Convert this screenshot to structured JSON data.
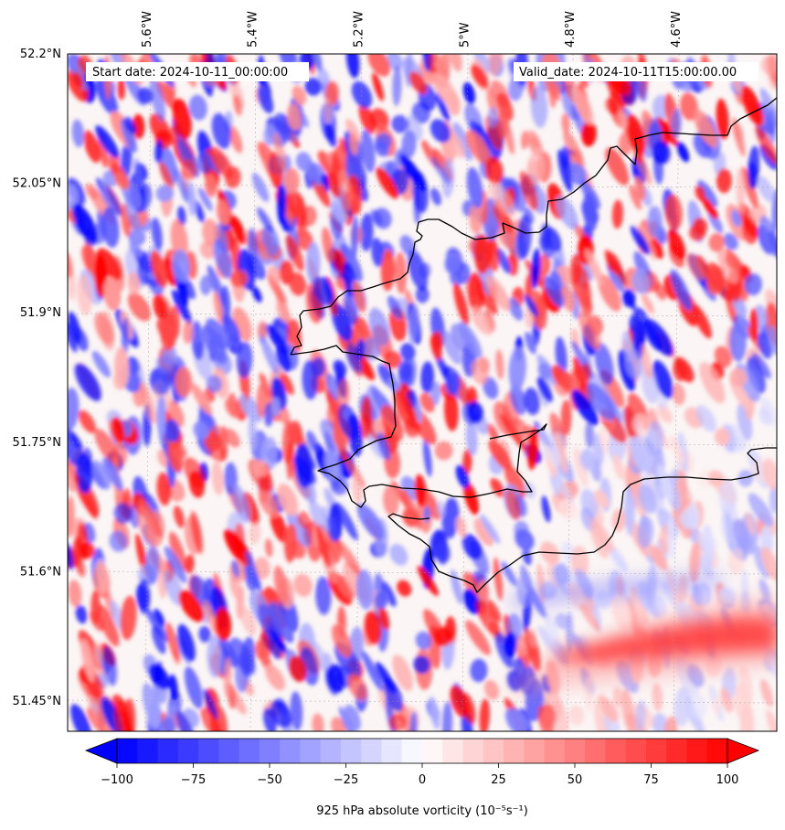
{
  "header": {
    "start_text": "Start date: 2024-10-11_00:00:00",
    "valid_text": "Valid_date: 2024-10-11T15:00:00.00"
  },
  "chart_data": {
    "type": "heatmap",
    "title": "",
    "field": "925 hPa absolute vorticity",
    "x_ticks": [
      {
        "label": "5.6°W",
        "lon": -5.6
      },
      {
        "label": "5.4°W",
        "lon": -5.4
      },
      {
        "label": "5.2°W",
        "lon": -5.2
      },
      {
        "label": "5°W",
        "lon": -5.0
      },
      {
        "label": "4.8°W",
        "lon": -4.8
      },
      {
        "label": "4.6°W",
        "lon": -4.6
      }
    ],
    "y_ticks": [
      {
        "label": "52.2°N",
        "lat": 52.2
      },
      {
        "label": "52.05°N",
        "lat": 52.05
      },
      {
        "label": "51.9°N",
        "lat": 51.9
      },
      {
        "label": "51.75°N",
        "lat": 51.75
      },
      {
        "label": "51.6°N",
        "lat": 51.6
      },
      {
        "label": "51.45°N",
        "lat": 51.45
      }
    ],
    "xlim": [
      -5.75,
      -4.41
    ],
    "ylim": [
      51.415,
      52.2
    ],
    "grid": true,
    "colorbar": {
      "label": "925 hPa absolute vorticity (10⁻⁵s⁻¹)",
      "range": [
        -100,
        100
      ],
      "levels": 30,
      "extend": "both",
      "cmap": "bwr",
      "ticks": [
        {
          "label": "−100",
          "value": -100
        },
        {
          "label": "−75",
          "value": -75
        },
        {
          "label": "−50",
          "value": -50
        },
        {
          "label": "−25",
          "value": -25
        },
        {
          "label": "0",
          "value": 0
        },
        {
          "label": "25",
          "value": 25
        },
        {
          "label": "50",
          "value": 50
        },
        {
          "label": "75",
          "value": 75
        },
        {
          "label": "100",
          "value": 100
        }
      ]
    },
    "field_character": "small-scale alternating positive/negative vorticity bands over land and nearshore sea; broad smooth positive band in the south-east sea near 51.52°N, 4.7°W",
    "coastline": true
  }
}
